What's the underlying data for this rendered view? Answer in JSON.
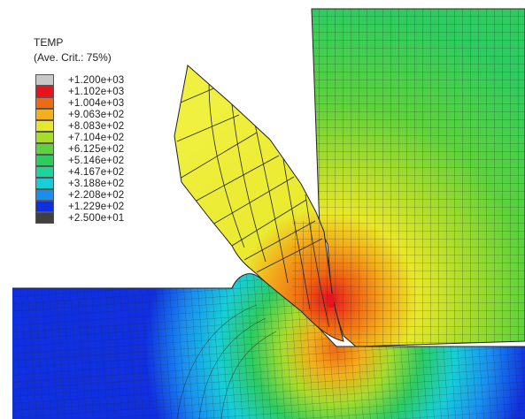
{
  "legend": {
    "title": "TEMP",
    "subtitle": "(Ave. Crit.: 75%)",
    "entries": [
      {
        "label": "+1.200e+03",
        "color": "#c8c8c8"
      },
      {
        "label": "+1.102e+03",
        "color": "#e6141e"
      },
      {
        "label": "+1.004e+03",
        "color": "#f06a14"
      },
      {
        "label": "+9.063e+02",
        "color": "#f2b01c"
      },
      {
        "label": "+8.083e+02",
        "color": "#e8e82a"
      },
      {
        "label": "+7.104e+02",
        "color": "#a8dc2c"
      },
      {
        "label": "+6.125e+02",
        "color": "#5cd23c"
      },
      {
        "label": "+5.146e+02",
        "color": "#2ecc60"
      },
      {
        "label": "+4.167e+02",
        "color": "#1ed49c"
      },
      {
        "label": "+3.188e+02",
        "color": "#18cdd8"
      },
      {
        "label": "+2.208e+02",
        "color": "#1a8ef0"
      },
      {
        "label": "+1.229e+02",
        "color": "#1030e0"
      },
      {
        "label": "+2.500e+01",
        "color": "#404040"
      }
    ]
  }
}
